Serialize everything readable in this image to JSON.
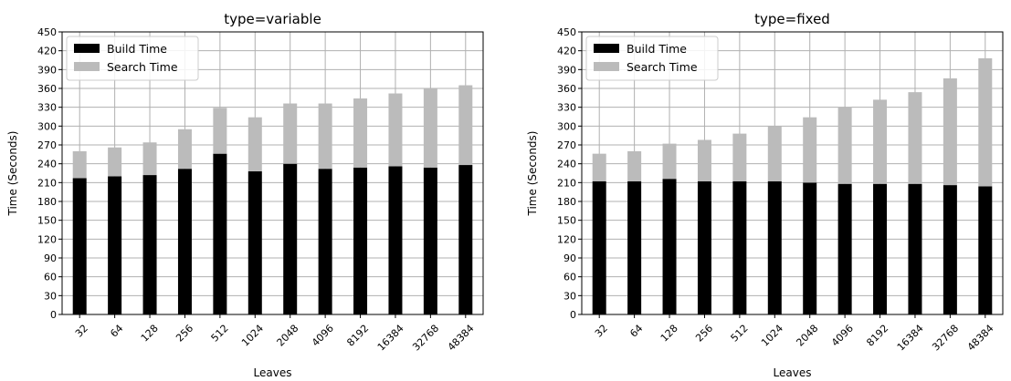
{
  "chart_data": [
    {
      "type": "bar",
      "stacked": true,
      "title": "type=variable",
      "xlabel": "Leaves",
      "ylabel": "Time (Seconds)",
      "ylim": [
        0,
        450
      ],
      "yticks": [
        0,
        30,
        60,
        90,
        120,
        150,
        180,
        210,
        240,
        270,
        300,
        330,
        360,
        390,
        420,
        450
      ],
      "grid": true,
      "legend_position": "top-left",
      "categories": [
        "32",
        "64",
        "128",
        "256",
        "512",
        "1024",
        "2048",
        "4096",
        "8192",
        "16384",
        "32768",
        "48384"
      ],
      "series": [
        {
          "name": "Build Time",
          "color": "#000000",
          "values": [
            217,
            220,
            222,
            232,
            256,
            228,
            240,
            232,
            234,
            236,
            234,
            238
          ]
        },
        {
          "name": "Search Time",
          "color": "#bbbbbb",
          "values": [
            43,
            46,
            52,
            63,
            73,
            86,
            96,
            104,
            110,
            116,
            126,
            127
          ]
        }
      ]
    },
    {
      "type": "bar",
      "stacked": true,
      "title": "type=fixed",
      "xlabel": "Leaves",
      "ylabel": "Time (Seconds)",
      "ylim": [
        0,
        450
      ],
      "yticks": [
        0,
        30,
        60,
        90,
        120,
        150,
        180,
        210,
        240,
        270,
        300,
        330,
        360,
        390,
        420,
        450
      ],
      "grid": true,
      "legend_position": "top-left",
      "categories": [
        "32",
        "64",
        "128",
        "256",
        "512",
        "1024",
        "2048",
        "4096",
        "8192",
        "16384",
        "32768",
        "48384"
      ],
      "series": [
        {
          "name": "Build Time",
          "color": "#000000",
          "values": [
            212,
            212,
            216,
            212,
            212,
            212,
            210,
            208,
            208,
            208,
            206,
            204
          ]
        },
        {
          "name": "Search Time",
          "color": "#bbbbbb",
          "values": [
            44,
            48,
            56,
            66,
            76,
            88,
            104,
            122,
            134,
            146,
            170,
            204
          ]
        }
      ]
    }
  ]
}
